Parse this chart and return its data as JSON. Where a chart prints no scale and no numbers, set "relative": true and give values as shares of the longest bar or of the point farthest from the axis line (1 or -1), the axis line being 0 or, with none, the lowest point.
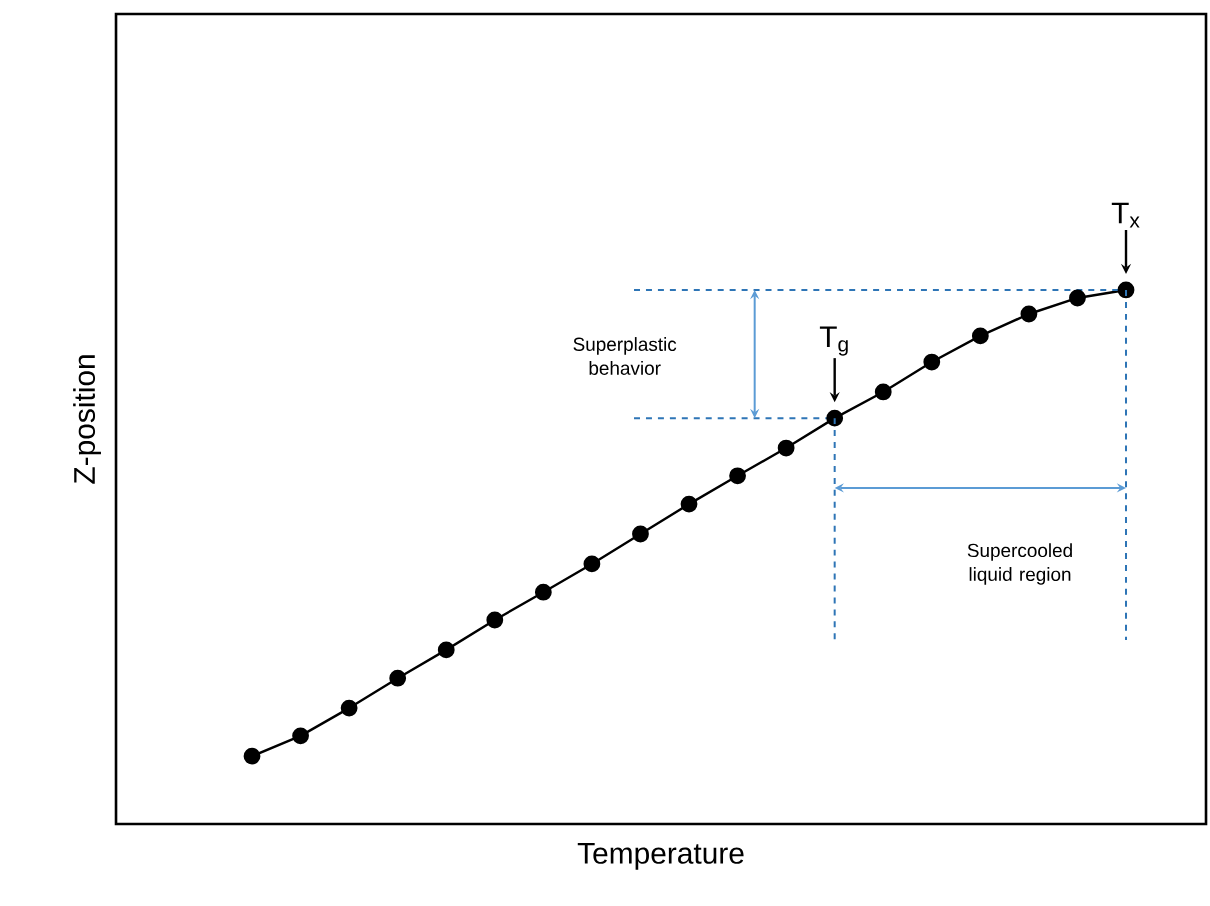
{
  "chart_data": {
    "type": "line",
    "xlabel": "Temperature",
    "ylabel": "Z-position",
    "relative": true,
    "color": "#000000",
    "marker": "circle",
    "categories": [
      null,
      null,
      null,
      null,
      null,
      null,
      null,
      null,
      null,
      null,
      null,
      null,
      null,
      null,
      null,
      null,
      null,
      null,
      null
    ],
    "values": [
      0.127,
      0.165,
      0.217,
      0.273,
      0.326,
      0.382,
      0.434,
      0.487,
      0.543,
      0.599,
      0.652,
      0.704,
      0.76,
      0.809,
      0.865,
      0.914,
      0.955,
      0.985,
      1.0
    ],
    "annotations": [
      {
        "text": "T$_{g}$",
        "y": 0.76
      },
      {
        "text": "T$_{x}$",
        "y": 1.0
      },
      "Superplastic behavior",
      "Supercooled liquid region"
    ],
    "ref_lines": [
      {
        "axis": "y",
        "value": 0.76,
        "color": "#2e75b6",
        "line_style": "dashed"
      },
      {
        "axis": "y",
        "value": 1.0,
        "color": "#2e75b6",
        "line_style": "dashed"
      }
    ]
  }
}
